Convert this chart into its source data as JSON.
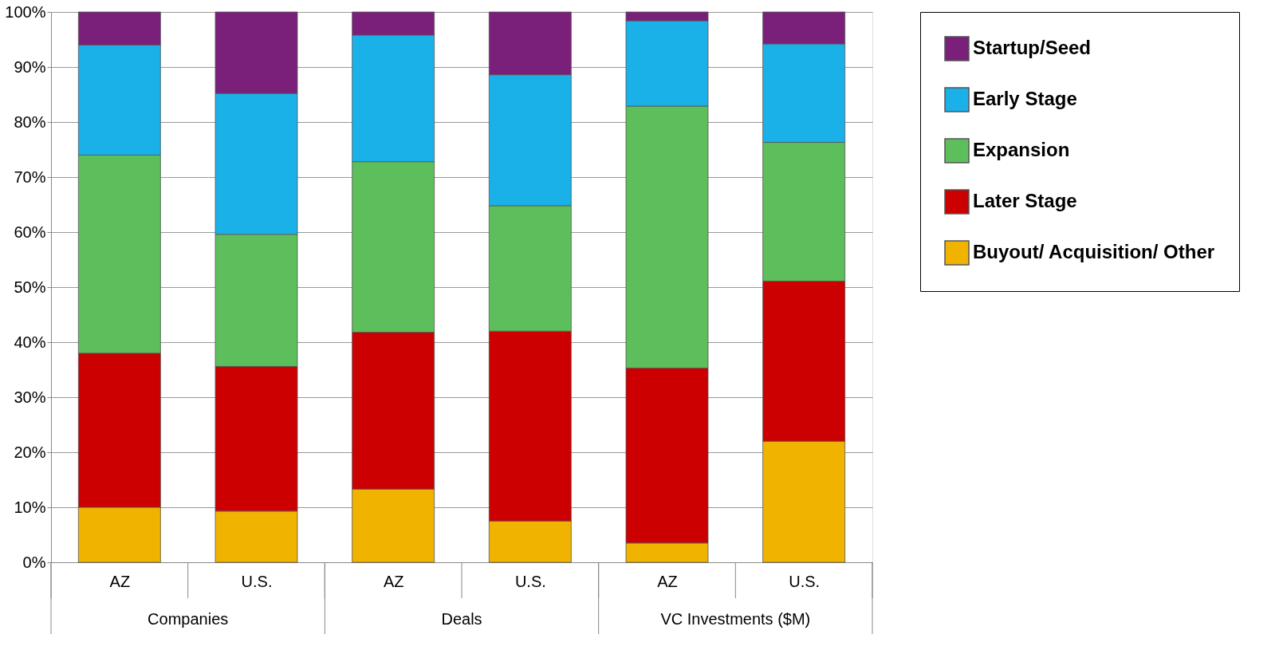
{
  "chart_data": {
    "type": "bar",
    "stacked": true,
    "categories": [
      "AZ",
      "U.S.",
      "AZ",
      "U.S.",
      "AZ",
      "U.S."
    ],
    "annotations": [
      "Companies",
      "Deals",
      "VC Investments ($M)"
    ],
    "series": [
      {
        "name": "Buyout/ Acquisition/ Other",
        "color": "#f0b400",
        "values": [
          10,
          9.3,
          13.3,
          7.5,
          3.5,
          22
        ]
      },
      {
        "name": "Later Stage",
        "color": "#cc0000",
        "values": [
          28,
          26.3,
          28.5,
          34.5,
          31.8,
          29.1
        ]
      },
      {
        "name": "Expansion",
        "color": "#5cbf5c",
        "values": [
          36,
          24.0,
          31.0,
          22.8,
          47.6,
          25.2
        ]
      },
      {
        "name": "Early Stage",
        "color": "#1ab0e8",
        "values": [
          20,
          25.6,
          23.0,
          23.8,
          15.5,
          17.9
        ]
      },
      {
        "name": "Startup/Seed",
        "color": "#7a1f7a",
        "values": [
          6,
          14.8,
          4.2,
          11.4,
          1.6,
          5.8
        ]
      }
    ],
    "ylim": [
      0,
      100
    ],
    "yticks": [
      {
        "value": 0,
        "label": "0%"
      },
      {
        "value": 10,
        "label": "10%"
      },
      {
        "value": 20,
        "label": "20%"
      },
      {
        "value": 30,
        "label": "30%"
      },
      {
        "value": 40,
        "label": "40%"
      },
      {
        "value": 50,
        "label": "50%"
      },
      {
        "value": 60,
        "label": "60%"
      },
      {
        "value": 70,
        "label": "70%"
      },
      {
        "value": 80,
        "label": "80%"
      },
      {
        "value": 90,
        "label": "90%"
      },
      {
        "value": 100,
        "label": "100%"
      }
    ],
    "grid": "y",
    "legend": "right"
  }
}
